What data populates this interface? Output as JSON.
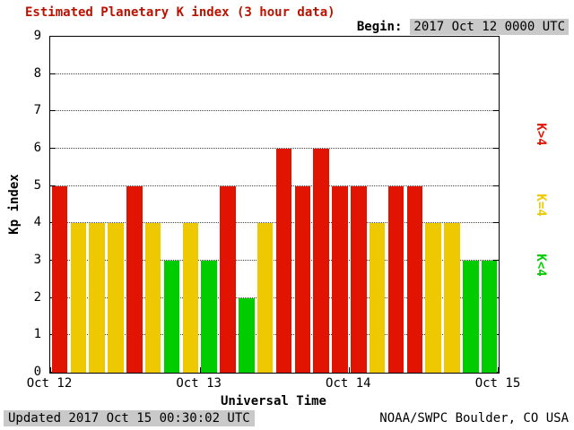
{
  "title": "Estimated Planetary K index (3 hour data)",
  "begin_label": "Begin:",
  "begin_value": "2017 Oct 12 0000 UTC",
  "footer": {
    "updated": "Updated 2017 Oct 15 00:30:02 UTC",
    "source": "NOAA/SWPC Boulder, CO USA"
  },
  "legend": [
    {
      "label": "K>4",
      "key": "red"
    },
    {
      "label": "K=4",
      "key": "yellow"
    },
    {
      "label": "K<4",
      "key": "green"
    }
  ],
  "colors": {
    "red": "#e01400",
    "yellow": "#eec800",
    "green": "#00cc00",
    "title": "#bb1100",
    "highlight_bg": "#c9c9c9"
  },
  "chart_data": {
    "type": "bar",
    "title": "Estimated Planetary K index (3 hour data)",
    "xlabel": "Universal Time",
    "ylabel": "Kp index",
    "ylim": [
      0,
      9
    ],
    "yticks": [
      0,
      1,
      2,
      3,
      4,
      5,
      6,
      7,
      8,
      9
    ],
    "xticklabels": [
      "Oct 12",
      "Oct 13",
      "Oct 14",
      "Oct 15"
    ],
    "interval_hours": 3,
    "values": [
      5,
      4,
      4,
      4,
      5,
      4,
      3,
      4,
      3,
      5,
      2,
      4,
      6,
      5,
      6,
      5,
      5,
      4,
      5,
      5,
      4,
      4,
      3,
      3
    ],
    "color_rule": {
      "above_4": "red",
      "equal_4": "yellow",
      "below_4": "green"
    },
    "grid": "dotted horizontal at each integer",
    "legend_position": "right, rotated"
  }
}
